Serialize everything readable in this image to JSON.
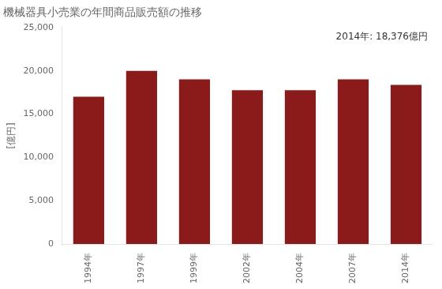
{
  "chart_data": {
    "type": "bar",
    "title": "機械器具小売業の年間商品販売額の推移",
    "ylabel": "[億円]",
    "annotation": "2014年: 18,376億円",
    "categories": [
      "1994年",
      "1997年",
      "1999年",
      "2002年",
      "2004年",
      "2007年",
      "2014年"
    ],
    "values": [
      17000,
      20000,
      19000,
      17750,
      17750,
      19000,
      18376
    ],
    "color": "#8B1A1A",
    "ylim": [
      0,
      25000
    ],
    "yticks": [
      0,
      {
        "value": 5000,
        "label": "5,000"
      },
      {
        "value": 10000,
        "label": "10,000"
      },
      {
        "value": 15000,
        "label": "15,000"
      },
      {
        "value": 20000,
        "label": "20,000"
      },
      {
        "value": 25000,
        "label": "25,000"
      }
    ],
    "grid": false
  }
}
